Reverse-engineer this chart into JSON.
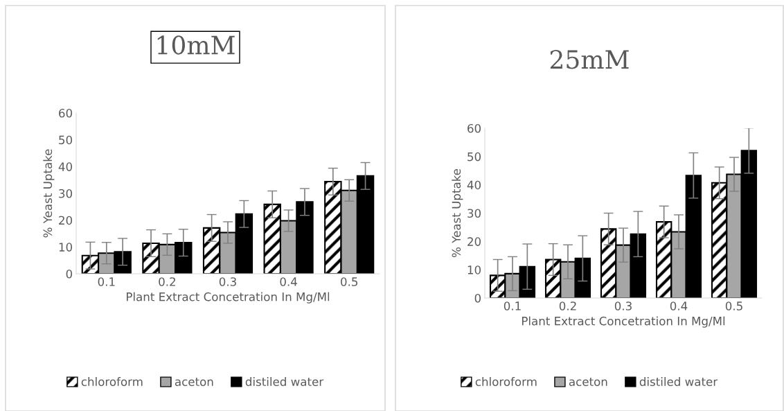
{
  "chart_data": [
    {
      "type": "bar",
      "title": "10mM",
      "xlabel": "Plant Extract Concetration In Mg/Ml",
      "ylabel": "% Yeast Uptake",
      "categories": [
        "0.1",
        "0.2",
        "0.3",
        "0.4",
        "0.5"
      ],
      "ylim": [
        0,
        60
      ],
      "yticks": [
        0,
        10,
        20,
        30,
        40,
        50,
        60
      ],
      "grid": false,
      "legend": "bottom",
      "series": [
        {
          "name": "chloroform",
          "color": "#000000",
          "values": [
            6.8,
            11.4,
            17.1,
            25.9,
            34.4
          ],
          "errors": [
            5,
            5,
            5,
            5,
            5
          ]
        },
        {
          "name": "aceton",
          "color": "#a6a6a6",
          "values": [
            7.7,
            10.9,
            15.4,
            19.8,
            31.1
          ],
          "errors": [
            4,
            4,
            4,
            4,
            4
          ]
        },
        {
          "name": "distiled water",
          "color": "#000000",
          "values": [
            8.2,
            11.6,
            22.3,
            26.8,
            36.5
          ],
          "errors": [
            5,
            5,
            5,
            5,
            5
          ]
        }
      ]
    },
    {
      "type": "bar",
      "title": "25mM",
      "xlabel": "Plant Extract Concetration In Mg/Ml",
      "ylabel": "% Yeast Uptake",
      "categories": [
        "0.1",
        "0.2",
        "0.3",
        "0.4",
        "0.5"
      ],
      "ylim": [
        0,
        60
      ],
      "yticks": [
        0,
        10,
        20,
        30,
        40,
        50,
        60
      ],
      "grid": false,
      "legend": "bottom",
      "series": [
        {
          "name": "chloroform",
          "color": "#000000",
          "values": [
            8.0,
            13.6,
            24.4,
            26.9,
            40.7
          ],
          "errors": [
            5.6,
            5.6,
            5.6,
            5.6,
            5.6
          ]
        },
        {
          "name": "aceton",
          "color": "#a6a6a6",
          "values": [
            8.6,
            12.8,
            18.7,
            23.4,
            43.7
          ],
          "errors": [
            6,
            6,
            6,
            6,
            6
          ]
        },
        {
          "name": "distiled water",
          "color": "#000000",
          "values": [
            11.1,
            14.0,
            22.6,
            43.3,
            52.1
          ],
          "errors": [
            8,
            8,
            8,
            8,
            8
          ]
        }
      ]
    }
  ]
}
